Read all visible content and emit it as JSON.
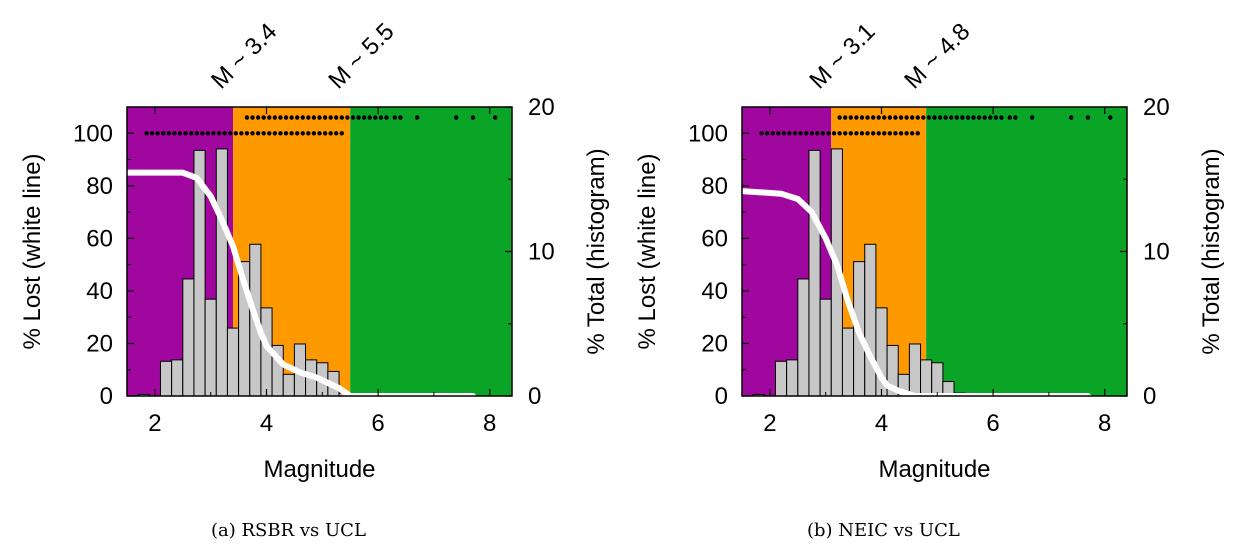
{
  "chart_data": [
    {
      "type": "bar",
      "caption": "(a) RSBR vs UCL",
      "xlabel": "Magnitude",
      "ylabel_left": "% Lost (white line)",
      "ylabel_right": "% Total (histogram)",
      "xlim": [
        1.5,
        8.4
      ],
      "ylim_left": [
        0,
        110
      ],
      "ylim_right": [
        0,
        20
      ],
      "x_ticks": [
        "2",
        "4",
        "6",
        "8"
      ],
      "y_left_ticks": [
        "0",
        "20",
        "40",
        "60",
        "80",
        "100"
      ],
      "y_right_ticks": [
        "0",
        "10",
        "20"
      ],
      "thresholds": [
        {
          "label": "M ~ 3.4",
          "value": 3.4
        },
        {
          "label": "M ~ 5.5",
          "value": 5.5
        }
      ],
      "regions": [
        {
          "from": 1.5,
          "to": 3.4,
          "color": "#a0079e"
        },
        {
          "from": 3.4,
          "to": 5.5,
          "color": "#ff9900"
        },
        {
          "from": 5.5,
          "to": 8.4,
          "color": "#0aa426"
        }
      ],
      "histogram": {
        "bin_width": 0.2,
        "bin_starts": [
          1.7,
          1.9,
          2.1,
          2.3,
          2.5,
          2.7,
          2.9,
          3.1,
          3.3,
          3.5,
          3.7,
          3.9,
          4.1,
          4.3,
          4.5,
          4.7,
          4.9,
          5.1,
          5.3
        ],
        "values": [
          0.1,
          0,
          2.4,
          2.5,
          8.1,
          17.0,
          6.7,
          17.1,
          4.7,
          9.3,
          10.5,
          6.1,
          3.5,
          1.5,
          3.6,
          2.5,
          2.3,
          1.7,
          0.2
        ],
        "color": "#c7c7c7"
      },
      "lost_line": {
        "x": [
          1.5,
          2.2,
          2.5,
          2.75,
          3.0,
          3.2,
          3.4,
          3.6,
          3.8,
          3.9,
          4.0,
          4.3,
          4.6,
          4.9,
          5.1,
          5.3,
          5.5,
          6.0,
          7.7
        ],
        "y": [
          85,
          85,
          85,
          83,
          76,
          67,
          57,
          43,
          30,
          24,
          19,
          12,
          9,
          7,
          5,
          3,
          0,
          0,
          0
        ],
        "color": "#ffffff"
      },
      "events_row_100": [
        1.85,
        1.95,
        2.05,
        2.15,
        2.25,
        2.35,
        2.45,
        2.55,
        2.65,
        2.75,
        2.85,
        2.95,
        3.05,
        3.15,
        3.25,
        3.35,
        3.45,
        3.55,
        3.65,
        3.75,
        3.85,
        3.95,
        4.05,
        4.15,
        4.25,
        4.35,
        4.45,
        4.55,
        4.65,
        4.75,
        4.85,
        4.95,
        5.05,
        5.15,
        5.25,
        5.35
      ],
      "events_row_106": [
        3.65,
        3.75,
        3.85,
        3.95,
        4.05,
        4.15,
        4.25,
        4.35,
        4.45,
        4.55,
        4.65,
        4.75,
        4.85,
        4.95,
        5.05,
        5.15,
        5.25,
        5.35,
        5.45,
        5.55,
        5.65,
        5.75,
        5.85,
        5.95,
        6.05,
        6.15,
        6.3,
        6.4,
        6.7,
        7.4,
        7.7,
        8.1
      ]
    },
    {
      "type": "bar",
      "caption": "(b) NEIC vs UCL",
      "xlabel": "Magnitude",
      "ylabel_left": "% Lost (white line)",
      "ylabel_right": "% Total (histogram)",
      "xlim": [
        1.5,
        8.4
      ],
      "ylim_left": [
        0,
        110
      ],
      "ylim_right": [
        0,
        20
      ],
      "x_ticks": [
        "2",
        "4",
        "6",
        "8"
      ],
      "y_left_ticks": [
        "0",
        "20",
        "40",
        "60",
        "80",
        "100"
      ],
      "y_right_ticks": [
        "0",
        "10",
        "20"
      ],
      "thresholds": [
        {
          "label": "M ~ 3.1",
          "value": 3.1
        },
        {
          "label": "M ~ 4.8",
          "value": 4.8
        }
      ],
      "regions": [
        {
          "from": 1.5,
          "to": 3.1,
          "color": "#a0079e"
        },
        {
          "from": 3.1,
          "to": 4.8,
          "color": "#ff9900"
        },
        {
          "from": 4.8,
          "to": 8.4,
          "color": "#0aa426"
        }
      ],
      "histogram": {
        "bin_width": 0.2,
        "bin_starts": [
          1.7,
          1.9,
          2.1,
          2.3,
          2.5,
          2.7,
          2.9,
          3.1,
          3.3,
          3.5,
          3.7,
          3.9,
          4.1,
          4.3,
          4.5,
          4.7,
          4.9,
          5.1,
          5.3
        ],
        "values": [
          0.1,
          0,
          2.4,
          2.5,
          8.1,
          17.0,
          6.7,
          17.1,
          4.7,
          9.3,
          10.5,
          6.1,
          3.5,
          1.5,
          3.6,
          2.5,
          2.3,
          1.0,
          0.2
        ],
        "color": "#c7c7c7"
      },
      "lost_line": {
        "x": [
          1.5,
          2.2,
          2.5,
          2.75,
          3.0,
          3.2,
          3.4,
          3.6,
          3.8,
          4.0,
          4.1,
          4.3,
          4.45,
          4.6,
          5.0,
          7.7
        ],
        "y": [
          78,
          77,
          75,
          70,
          60,
          50,
          36,
          24,
          15,
          7,
          4,
          2,
          1,
          0,
          0,
          0
        ],
        "color": "#ffffff"
      },
      "events_row_100": [
        1.85,
        1.95,
        2.05,
        2.15,
        2.25,
        2.35,
        2.45,
        2.55,
        2.65,
        2.75,
        2.85,
        2.95,
        3.05,
        3.15,
        3.25,
        3.35,
        3.45,
        3.55,
        3.65,
        3.75,
        3.85,
        3.95,
        4.05,
        4.15,
        4.25,
        4.35,
        4.45,
        4.55,
        4.65
      ],
      "events_row_106": [
        3.25,
        3.35,
        3.45,
        3.55,
        3.65,
        3.75,
        3.85,
        3.95,
        4.05,
        4.15,
        4.25,
        4.35,
        4.45,
        4.55,
        4.65,
        4.75,
        4.85,
        4.95,
        5.05,
        5.15,
        5.25,
        5.35,
        5.45,
        5.55,
        5.65,
        5.75,
        5.85,
        5.95,
        6.05,
        6.15,
        6.3,
        6.4,
        6.7,
        7.4,
        7.7,
        8.1
      ]
    }
  ]
}
